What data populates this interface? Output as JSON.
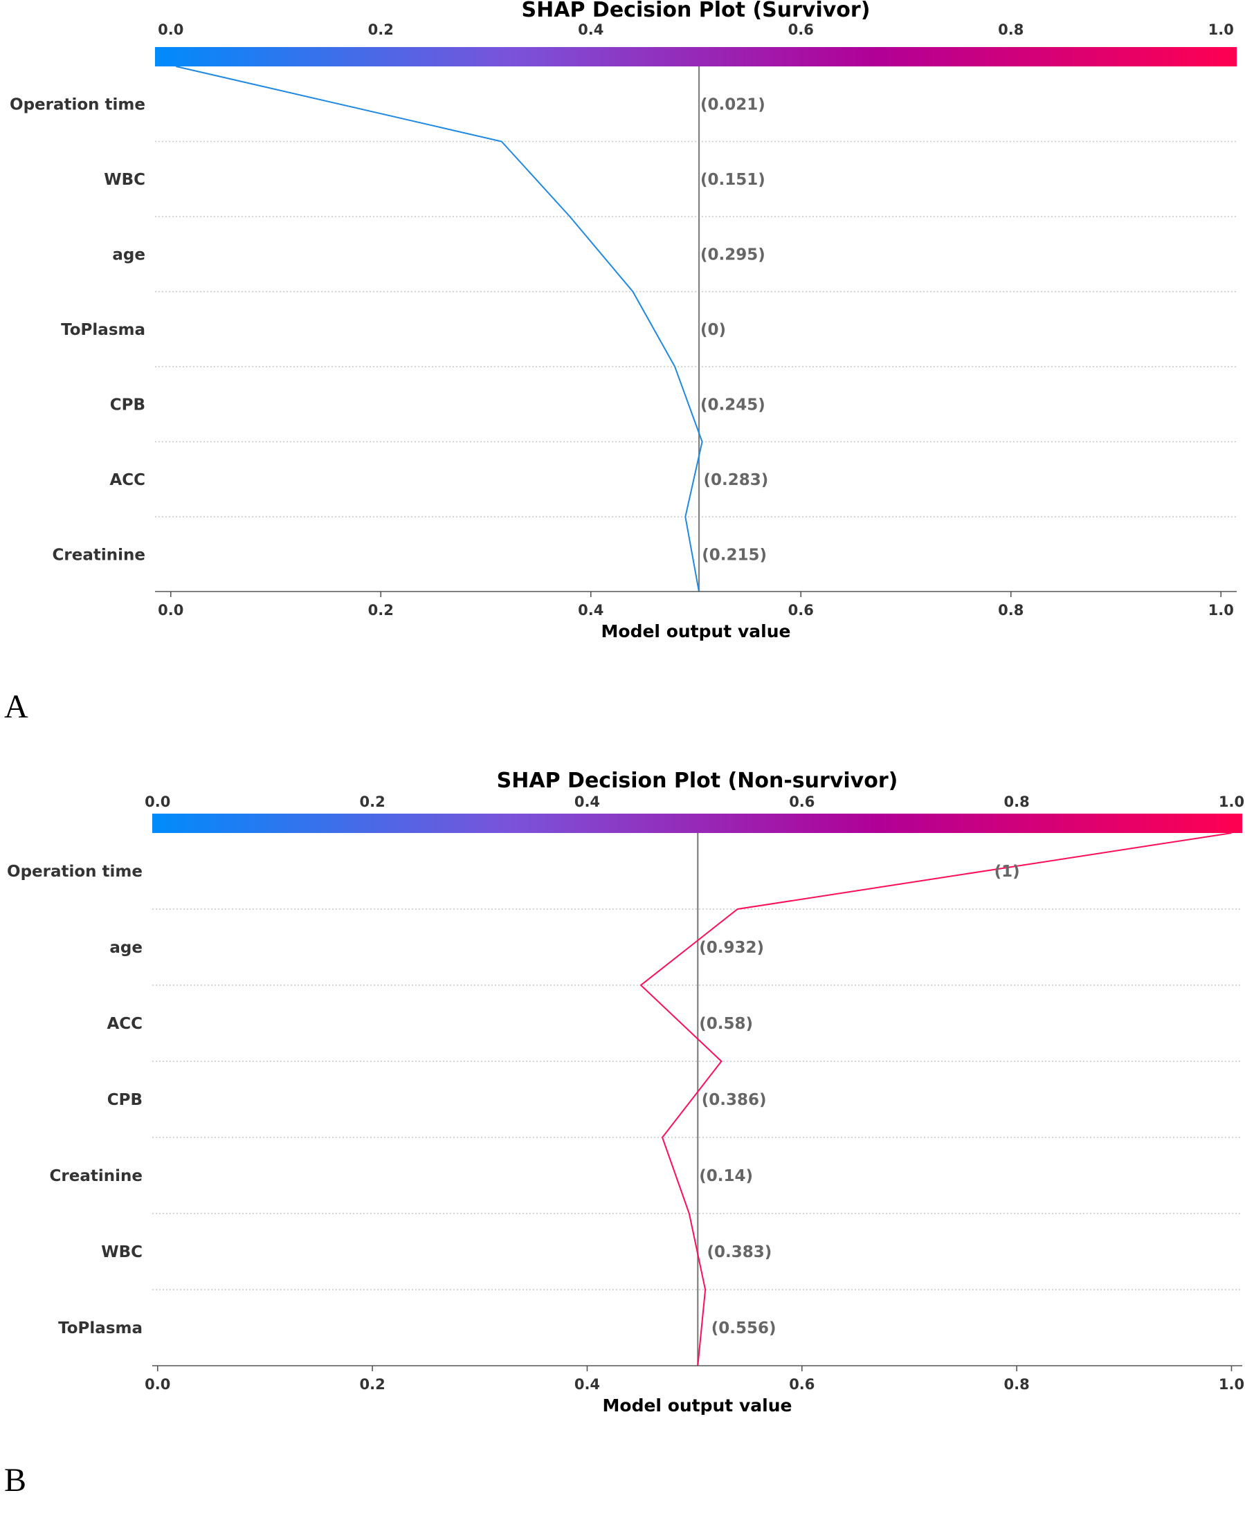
{
  "chart_data": [
    {
      "type": "line",
      "panel_label": "A",
      "title": "SHAP Decision Plot (Survivor)",
      "xlabel": "Model output value",
      "xlim": [
        -0.015,
        1.015
      ],
      "xticks": [
        "0.0",
        "0.2",
        "0.4",
        "0.6",
        "0.8",
        "1.0"
      ],
      "xtick_values": [
        0.0,
        0.2,
        0.4,
        0.6,
        0.8,
        1.0
      ],
      "base_value": 0.503,
      "colormap": [
        "#008bfb",
        "#7b52d9",
        "#b10096",
        "#ff0051"
      ],
      "line_color": "#1e88e5",
      "features": [
        "Operation time",
        "WBC",
        "age",
        "ToPlasma",
        "CPB",
        "ACC",
        "Creatinine"
      ],
      "feature_values": [
        "(0.021)",
        "(0.151)",
        "(0.295)",
        "(0)",
        "(0.245)",
        "(0.283)",
        "(0.215)"
      ],
      "cumulative_output": [
        0.005,
        0.315,
        0.38,
        0.44,
        0.48,
        0.506,
        0.49,
        0.503
      ]
    },
    {
      "type": "line",
      "panel_label": "B",
      "title": "SHAP Decision Plot (Non-survivor)",
      "xlabel": "Model output value",
      "xlim": [
        -0.005,
        1.01
      ],
      "xticks": [
        "0.0",
        "0.2",
        "0.4",
        "0.6",
        "0.8",
        "1.0"
      ],
      "xtick_values": [
        0.0,
        0.2,
        0.4,
        0.6,
        0.8,
        1.0
      ],
      "base_value": 0.503,
      "colormap": [
        "#008bfb",
        "#7b52d9",
        "#b10096",
        "#ff0051"
      ],
      "line_color": "#ff0d57",
      "features": [
        "Operation time",
        "age",
        "ACC",
        "CPB",
        "Creatinine",
        "WBC",
        "ToPlasma"
      ],
      "feature_values": [
        "(1)",
        "(0.932)",
        "(0.58)",
        "(0.386)",
        "(0.14)",
        "(0.383)",
        "(0.556)"
      ],
      "cumulative_output": [
        1.0,
        0.54,
        0.45,
        0.525,
        0.47,
        0.495,
        0.51,
        0.503
      ]
    }
  ]
}
